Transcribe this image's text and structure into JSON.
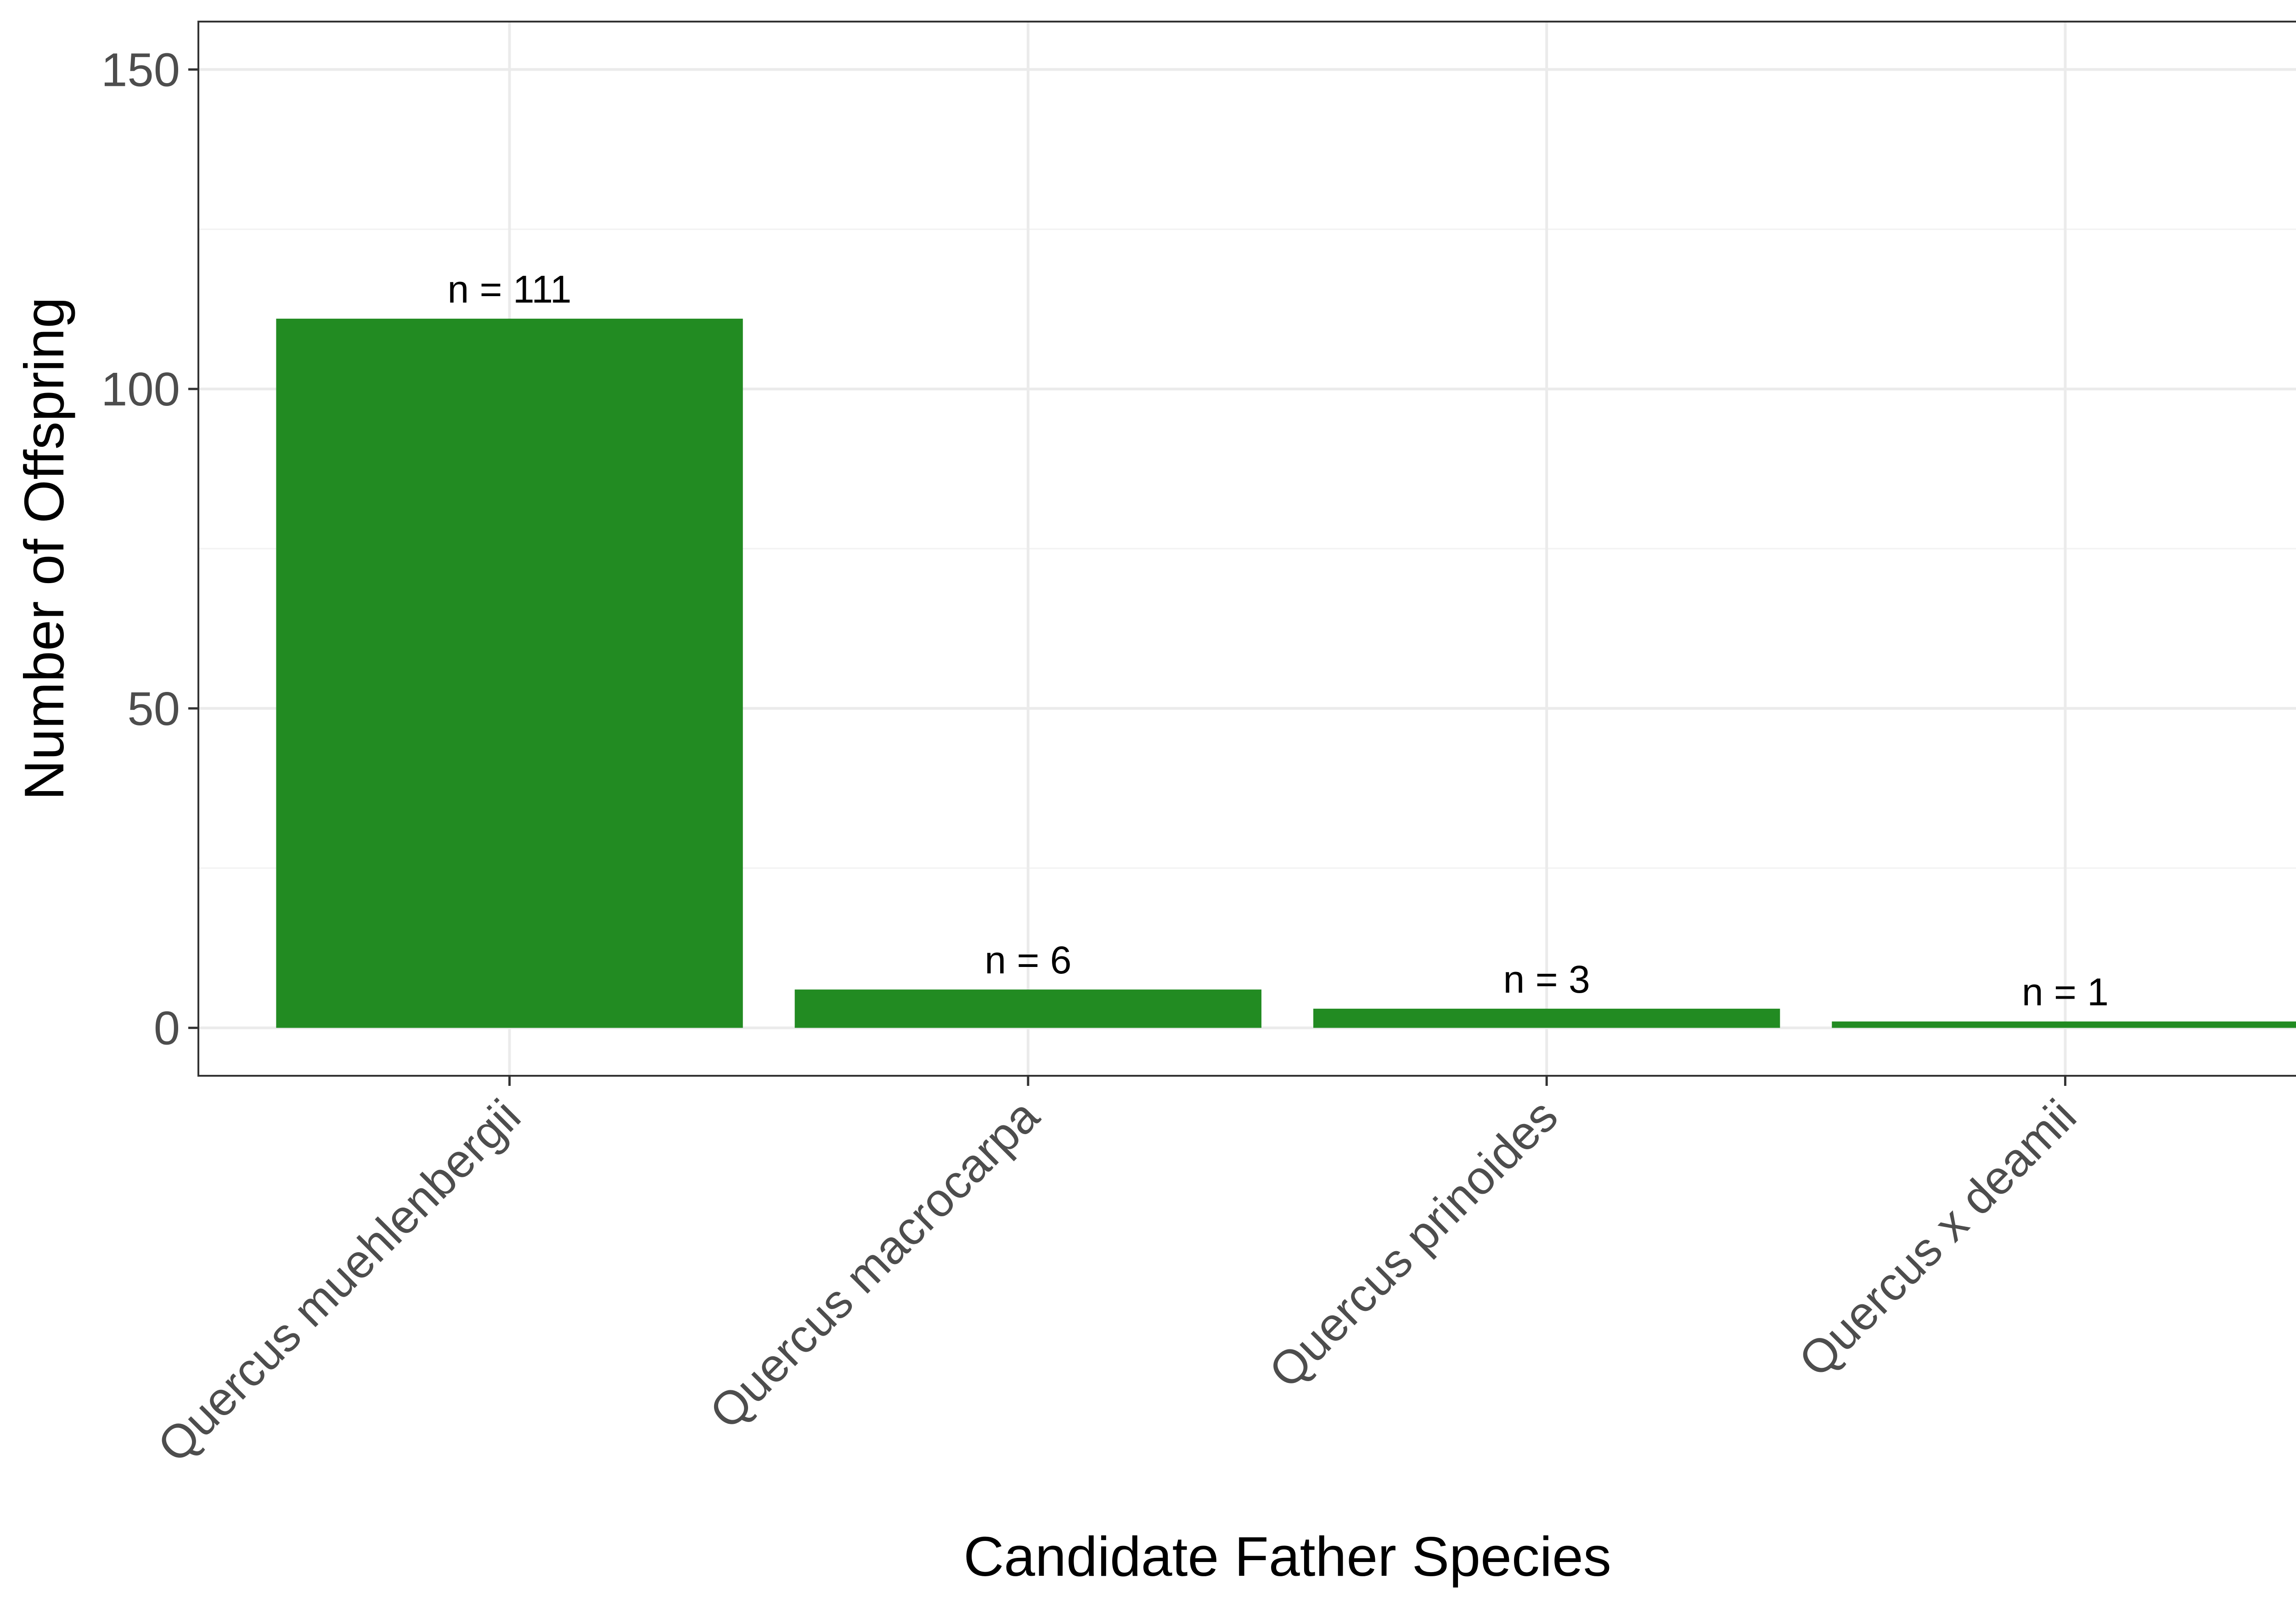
{
  "chart_data": {
    "type": "bar",
    "title": "",
    "xlabel": "Candidate Father Species",
    "ylabel": "Number of Offspring",
    "categories": [
      "Quercus muehlenbergii",
      "Quercus macrocarpa",
      "Quercus prinoides",
      "Quercus x deamii"
    ],
    "values": [
      111,
      6,
      3,
      1
    ],
    "data_labels": [
      "n = 111",
      "n = 6",
      "n = 3",
      "n = 1"
    ],
    "ylim": [
      -7.5,
      157.5
    ],
    "yticks": [
      0,
      50,
      100,
      150
    ],
    "ytick_labels": [
      "0",
      "50",
      "100",
      "150"
    ],
    "minor_yticks": [
      25,
      75,
      125
    ],
    "grid": true,
    "legend": "none",
    "bar_color": "#228B22",
    "x_tick_rotation": 45
  }
}
